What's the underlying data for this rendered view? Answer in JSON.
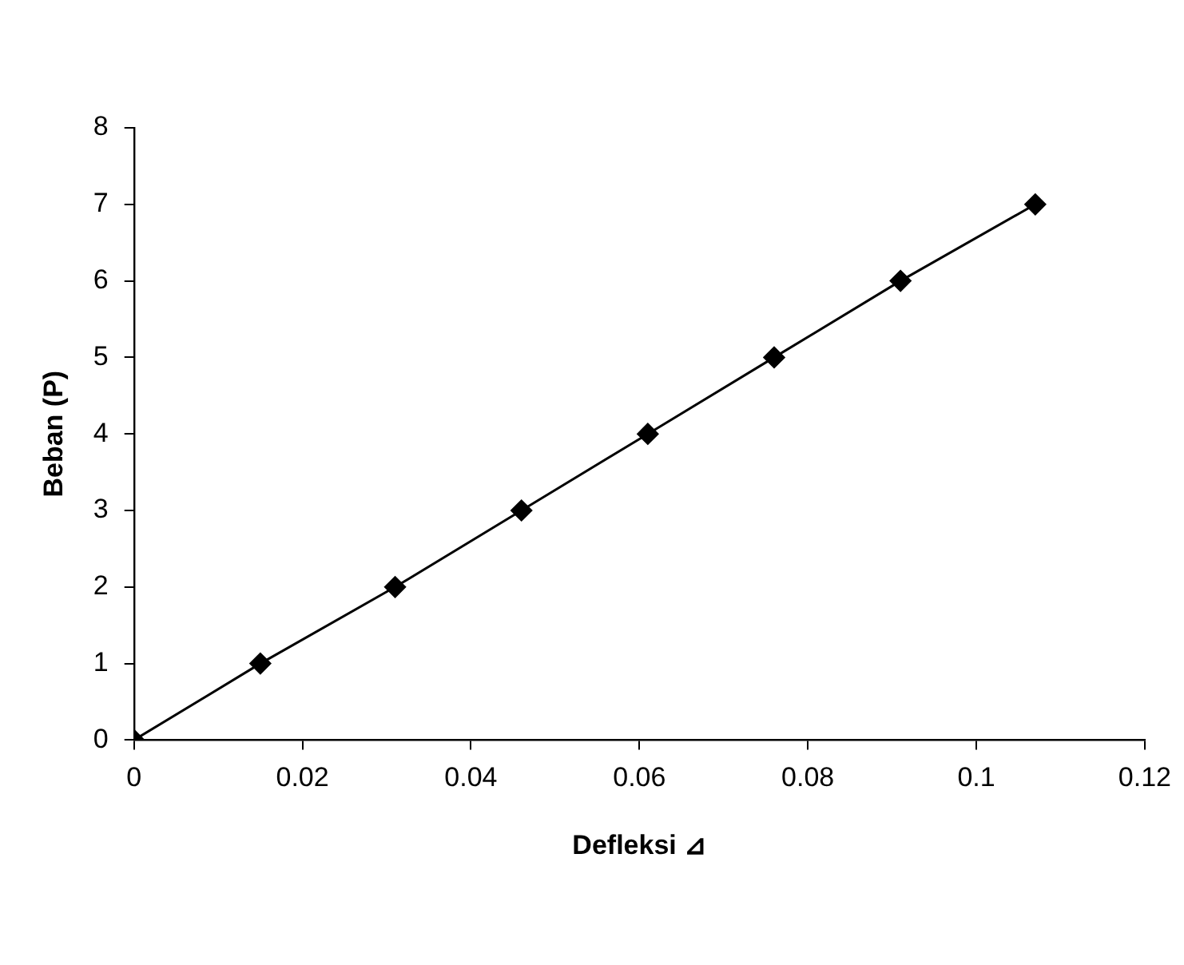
{
  "chart_data": {
    "type": "line",
    "xlabel": "Defleksi ⊿",
    "ylabel": "Beban (P)",
    "x": [
      0,
      0.015,
      0.031,
      0.046,
      0.061,
      0.076,
      0.091,
      0.107
    ],
    "series": [
      {
        "color": "#000000",
        "values": [
          0,
          1,
          2,
          3,
          4,
          5,
          6,
          7
        ]
      }
    ],
    "xlim": [
      0,
      0.12
    ],
    "xticks": [
      0,
      0.02,
      0.04,
      0.06,
      0.08,
      {
        "value": 0.1,
        "label": "0.1"
      },
      0.12
    ],
    "ylim": [
      0,
      8
    ],
    "yticks": [
      0,
      1,
      2,
      3,
      4,
      5,
      6,
      7,
      8
    ],
    "grid": false,
    "legend": false,
    "marker": "diamond",
    "line_style": "solid"
  }
}
